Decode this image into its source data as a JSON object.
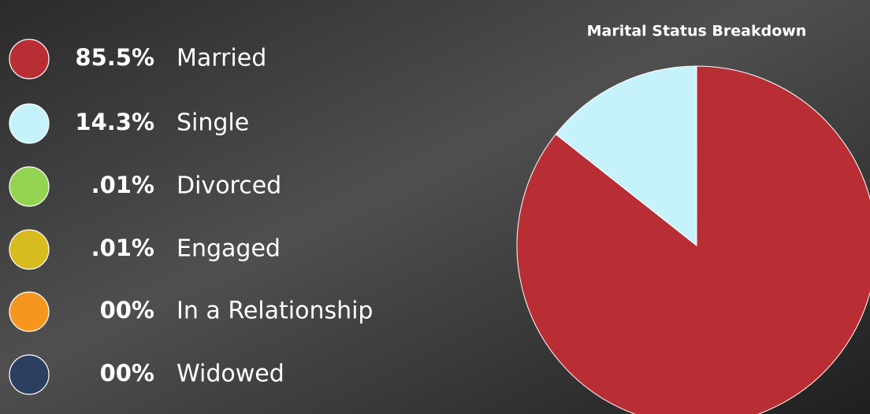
{
  "chart_data": {
    "type": "pie",
    "title": "Marital Status Breakdown",
    "categories": [
      "Married",
      "Single",
      "Divorced",
      "Engaged",
      "In a Relationship",
      "Widowed"
    ],
    "values": [
      85.5,
      14.3,
      0.01,
      0.01,
      0,
      0
    ],
    "value_labels": [
      "85.5%",
      "14.3%",
      ".01%",
      ".01%",
      "00%",
      "00%"
    ],
    "colors": [
      "#b92e34",
      "#c6f3fb",
      "#93d452",
      "#d8bb1f",
      "#f7961e",
      "#2d3f60"
    ]
  }
}
